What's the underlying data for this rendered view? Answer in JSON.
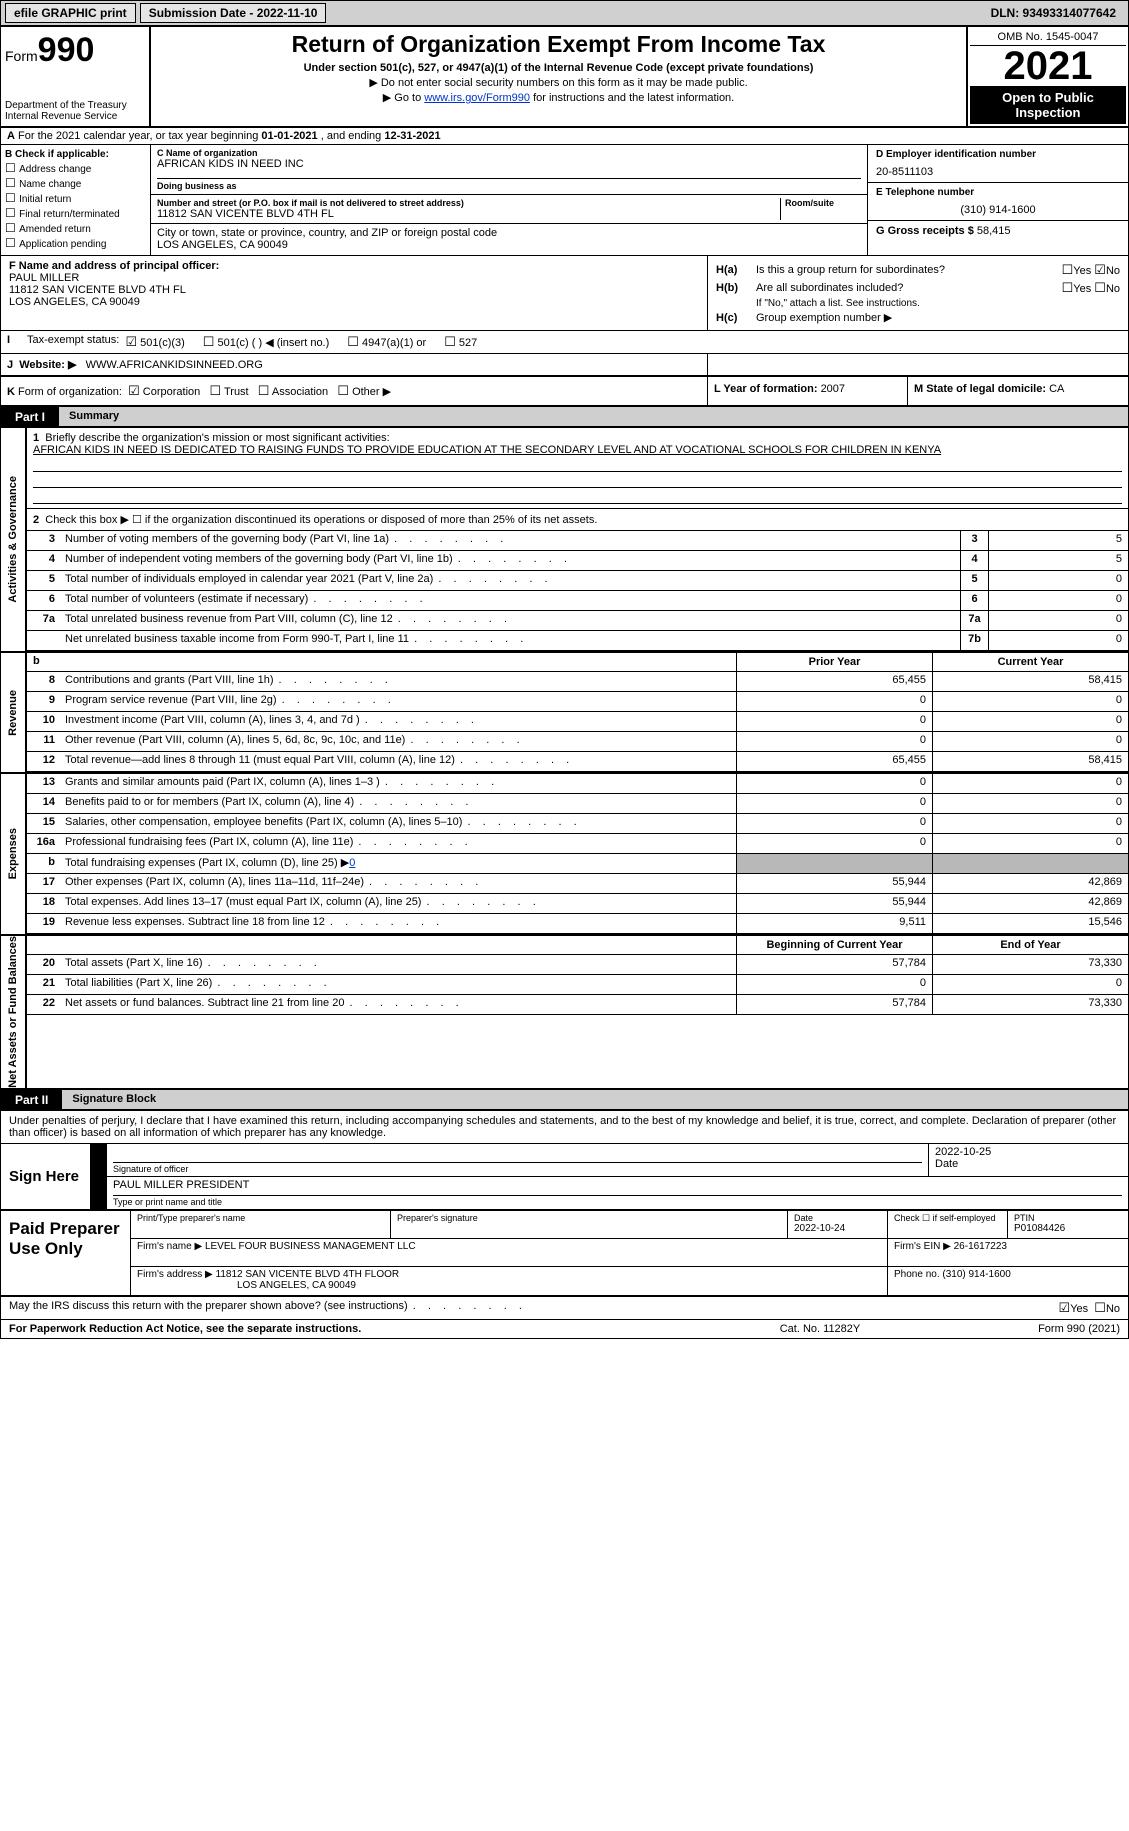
{
  "topbar": {
    "efile": "efile GRAPHIC print",
    "submission": "Submission Date - 2022-11-10",
    "dln": "DLN: 93493314077642"
  },
  "header": {
    "form_prefix": "Form",
    "form_num": "990",
    "title": "Return of Organization Exempt From Income Tax",
    "sub": "Under section 501(c), 527, or 4947(a)(1) of the Internal Revenue Code (except private foundations)",
    "note1": "Do not enter social security numbers on this form as it may be made public.",
    "note2_pre": "Go to ",
    "note2_link": "www.irs.gov/Form990",
    "note2_post": " for instructions and the latest information.",
    "dept": "Department of the Treasury",
    "irs": "Internal Revenue Service",
    "omb": "OMB No. 1545-0047",
    "year": "2021",
    "otp1": "Open to Public",
    "otp2": "Inspection"
  },
  "rowA": {
    "label": "A",
    "text1": " For the 2021 calendar year, or tax year beginning ",
    "d1": "01-01-2021",
    "text2": " , and ending ",
    "d2": "12-31-2021"
  },
  "colB": {
    "hdr": "B Check if applicable:",
    "o1": "Address change",
    "o2": "Name change",
    "o3": "Initial return",
    "o4": "Final return/terminated",
    "o5": "Amended return",
    "o6": "Application pending"
  },
  "colC": {
    "name_lbl": "C Name of organization",
    "name": "AFRICAN KIDS IN NEED INC",
    "dba_lbl": "Doing business as",
    "dba": "",
    "addr_lbl": "Number and street (or P.O. box if mail is not delivered to street address)",
    "room_lbl": "Room/suite",
    "addr": "11812 SAN VICENTE BLVD 4TH FL",
    "city_lbl": "City or town, state or province, country, and ZIP or foreign postal code",
    "city": "LOS ANGELES, CA  90049"
  },
  "colDE": {
    "d_lbl": "D Employer identification number",
    "d_val": "20-8511103",
    "e_lbl": "E Telephone number",
    "e_val": "(310) 914-1600",
    "g_lbl": "G Gross receipts $ ",
    "g_val": "58,415"
  },
  "f": {
    "lbl": "F Name and address of principal officer:",
    "name": "PAUL MILLER",
    "addr1": "11812 SAN VICENTE BLVD 4TH FL",
    "addr2": "LOS ANGELES, CA  90049"
  },
  "h": {
    "ha_l": "H(a)",
    "ha_t": "Is this a group return for subordinates?",
    "hb_l": "H(b)",
    "hb_t": "Are all subordinates included?",
    "hb_note": "If \"No,\" attach a list. See instructions.",
    "hc_l": "H(c)",
    "hc_t": "Group exemption number ▶",
    "yes": "Yes",
    "no": "No"
  },
  "i": {
    "lbl": "I",
    "t": "Tax-exempt status:",
    "o1": "501(c)(3)",
    "o2": "501(c) (  ) ◀ (insert no.)",
    "o3": "4947(a)(1) or",
    "o4": "527"
  },
  "j": {
    "lbl": "J",
    "t": "Website: ▶",
    "v": "WWW.AFRICANKIDSINNEED.ORG"
  },
  "k": {
    "lbl": "K",
    "t": "Form of organization:",
    "o1": "Corporation",
    "o2": "Trust",
    "o3": "Association",
    "o4": "Other ▶",
    "l_lbl": "L Year of formation: ",
    "l_val": "2007",
    "m_lbl": "M State of legal domicile: ",
    "m_val": "CA"
  },
  "part1": {
    "num": "Part I",
    "title": "Summary"
  },
  "sides": {
    "ag": "Activities & Governance",
    "rev": "Revenue",
    "exp": "Expenses",
    "na": "Net Assets or Fund Balances"
  },
  "mission": {
    "num": "1",
    "lbl": "Briefly describe the organization's mission or most significant activities:",
    "txt": "AFRICAN KIDS IN NEED IS DEDICATED TO RAISING FUNDS TO PROVIDE EDUCATION AT THE SECONDARY LEVEL AND AT VOCATIONAL SCHOOLS FOR CHILDREN IN KENYA"
  },
  "l2": {
    "n": "2",
    "t": "Check this box ▶ ☐ if the organization discontinued its operations or disposed of more than 25% of its net assets."
  },
  "ag_lines": [
    {
      "n": "3",
      "t": "Number of voting members of the governing body (Part VI, line 1a)",
      "box": "3",
      "v": "5"
    },
    {
      "n": "4",
      "t": "Number of independent voting members of the governing body (Part VI, line 1b)",
      "box": "4",
      "v": "5"
    },
    {
      "n": "5",
      "t": "Total number of individuals employed in calendar year 2021 (Part V, line 2a)",
      "box": "5",
      "v": "0"
    },
    {
      "n": "6",
      "t": "Total number of volunteers (estimate if necessary)",
      "box": "6",
      "v": "0"
    },
    {
      "n": "7a",
      "t": "Total unrelated business revenue from Part VIII, column (C), line 12",
      "box": "7a",
      "v": "0"
    },
    {
      "n": "",
      "t": "Net unrelated business taxable income from Form 990-T, Part I, line 11",
      "box": "7b",
      "v": "0"
    }
  ],
  "colhdr": {
    "b": "b",
    "py": "Prior Year",
    "cy": "Current Year"
  },
  "rev_lines": [
    {
      "n": "8",
      "t": "Contributions and grants (Part VIII, line 1h)",
      "py": "65,455",
      "cy": "58,415"
    },
    {
      "n": "9",
      "t": "Program service revenue (Part VIII, line 2g)",
      "py": "0",
      "cy": "0"
    },
    {
      "n": "10",
      "t": "Investment income (Part VIII, column (A), lines 3, 4, and 7d )",
      "py": "0",
      "cy": "0"
    },
    {
      "n": "11",
      "t": "Other revenue (Part VIII, column (A), lines 5, 6d, 8c, 9c, 10c, and 11e)",
      "py": "0",
      "cy": "0"
    },
    {
      "n": "12",
      "t": "Total revenue—add lines 8 through 11 (must equal Part VIII, column (A), line 12)",
      "py": "65,455",
      "cy": "58,415"
    }
  ],
  "exp_lines": [
    {
      "n": "13",
      "t": "Grants and similar amounts paid (Part IX, column (A), lines 1–3 )",
      "py": "0",
      "cy": "0"
    },
    {
      "n": "14",
      "t": "Benefits paid to or for members (Part IX, column (A), line 4)",
      "py": "0",
      "cy": "0"
    },
    {
      "n": "15",
      "t": "Salaries, other compensation, employee benefits (Part IX, column (A), lines 5–10)",
      "py": "0",
      "cy": "0"
    },
    {
      "n": "16a",
      "t": "Professional fundraising fees (Part IX, column (A), line 11e)",
      "py": "0",
      "cy": "0"
    }
  ],
  "l16b": {
    "n": "b",
    "t": "Total fundraising expenses (Part IX, column (D), line 25) ▶",
    "v": "0"
  },
  "exp_lines2": [
    {
      "n": "17",
      "t": "Other expenses (Part IX, column (A), lines 11a–11d, 11f–24e)",
      "py": "55,944",
      "cy": "42,869"
    },
    {
      "n": "18",
      "t": "Total expenses. Add lines 13–17 (must equal Part IX, column (A), line 25)",
      "py": "55,944",
      "cy": "42,869"
    },
    {
      "n": "19",
      "t": "Revenue less expenses. Subtract line 18 from line 12",
      "py": "9,511",
      "cy": "15,546"
    }
  ],
  "na_hdr": {
    "b": "Beginning of Current Year",
    "e": "End of Year"
  },
  "na_lines": [
    {
      "n": "20",
      "t": "Total assets (Part X, line 16)",
      "py": "57,784",
      "cy": "73,330"
    },
    {
      "n": "21",
      "t": "Total liabilities (Part X, line 26)",
      "py": "0",
      "cy": "0"
    },
    {
      "n": "22",
      "t": "Net assets or fund balances. Subtract line 21 from line 20",
      "py": "57,784",
      "cy": "73,330"
    }
  ],
  "part2": {
    "num": "Part II",
    "title": "Signature Block"
  },
  "sig": {
    "intro": "Under penalties of perjury, I declare that I have examined this return, including accompanying schedules and statements, and to the best of my knowledge and belief, it is true, correct, and complete. Declaration of preparer (other than officer) is based on all information of which preparer has any knowledge.",
    "here": "Sign Here",
    "sig_lbl": "Signature of officer",
    "date_lbl": "Date",
    "date": "2022-10-25",
    "name": "PAUL MILLER PRESIDENT",
    "name_lbl": "Type or print name and title"
  },
  "prep": {
    "title": "Paid Preparer Use Only",
    "r1c1_lbl": "Print/Type preparer's name",
    "r1c2_lbl": "Preparer's signature",
    "r1c3_lbl": "Date",
    "r1c3_val": "2022-10-24",
    "r1c4_lbl": "Check ☐ if self-employed",
    "r1c5_lbl": "PTIN",
    "r1c5_val": "P01084426",
    "r2c1_lbl": "Firm's name   ▶ ",
    "r2c1_val": "LEVEL FOUR BUSINESS MANAGEMENT LLC",
    "r2c2_lbl": "Firm's EIN ▶ ",
    "r2c2_val": "26-1617223",
    "r3c1_lbl": "Firm's address ▶ ",
    "r3c1_val1": "11812 SAN VICENTE BLVD 4TH FLOOR",
    "r3c1_val2": "LOS ANGELES, CA  90049",
    "r3c2_lbl": "Phone no. ",
    "r3c2_val": "(310) 914-1600"
  },
  "footerq": {
    "q": "May the IRS discuss this return with the preparer shown above? (see instructions)",
    "yes": "Yes",
    "no": "No"
  },
  "footer": {
    "l": "For Paperwork Reduction Act Notice, see the separate instructions.",
    "m": "Cat. No. 11282Y",
    "r": "Form 990 (2021)"
  }
}
